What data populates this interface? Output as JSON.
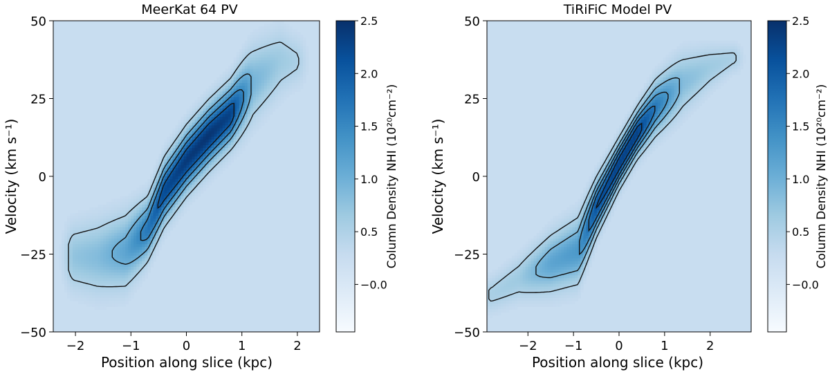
{
  "chart_data": [
    {
      "type": "heatmap",
      "title": "MeerKat 64 PV",
      "xlabel": "Position along slice (kpc)",
      "ylabel": "Velocity (km s⁻¹)",
      "xlim": [
        -2.4,
        2.4
      ],
      "ylim": [
        -50,
        50
      ],
      "xticks": [
        -2,
        -1,
        0,
        1,
        2
      ],
      "xtick_labels": [
        "−2",
        "−1",
        "0",
        "1",
        "2"
      ],
      "yticks": [
        -50,
        -25,
        0,
        25,
        50
      ],
      "ytick_labels": [
        "−50",
        "−25",
        "0",
        "25",
        "50"
      ],
      "colorbar": {
        "label": "Column Density NHI (10²⁰cm⁻²)",
        "range": [
          -0.45,
          2.5
        ],
        "ticks": [
          -0.0,
          0.5,
          1.0,
          1.5,
          2.0,
          2.5
        ],
        "tick_labels": [
          "−0.0",
          "0.5",
          "1.0",
          "1.5",
          "2.0",
          "2.5"
        ],
        "colormap": "Blues"
      },
      "background_value": 0.25,
      "contour_levels": [
        0.5,
        1.0,
        1.5,
        2.0
      ],
      "ridge": {
        "x": [
          -2.0,
          -1.6,
          -1.1,
          -0.7,
          -0.4,
          0.0,
          0.4,
          0.8,
          1.2,
          1.7,
          1.95
        ],
        "y": [
          -26,
          -26,
          -24,
          -17,
          -5,
          5,
          13,
          20,
          30,
          37,
          37
        ]
      },
      "profile": {
        "width": [
          9,
          10,
          10,
          8,
          8,
          8,
          8,
          8,
          10,
          9,
          7
        ],
        "peak": [
          0.75,
          0.85,
          1.15,
          1.7,
          2.2,
          2.4,
          2.45,
          2.3,
          0.95,
          0.65,
          0.55
        ]
      }
    },
    {
      "type": "heatmap",
      "title": "TiRiFiC Model PV",
      "xlabel": "Position along slice (kpc)",
      "ylabel": "Velocity (km s⁻¹)",
      "xlim": [
        -2.9,
        2.9
      ],
      "ylim": [
        -50,
        50
      ],
      "xticks": [
        -2,
        -1,
        0,
        1,
        2
      ],
      "xtick_labels": [
        "−2",
        "−1",
        "0",
        "1",
        "2"
      ],
      "yticks": [
        -50,
        -25,
        0,
        25,
        50
      ],
      "ytick_labels": [
        "−50",
        "−25",
        "0",
        "25",
        "50"
      ],
      "colorbar": {
        "label": "Column Density NHI (10²⁰cm⁻²)",
        "range": [
          -0.45,
          2.5
        ],
        "ticks": [
          -0.0,
          0.5,
          1.0,
          1.5,
          2.0,
          2.5
        ],
        "tick_labels": [
          "−0.0",
          "0.5",
          "1.0",
          "1.5",
          "2.0",
          "2.5"
        ],
        "colormap": "Blues"
      },
      "background_value": 0.25,
      "contour_levels": [
        0.5,
        0.9,
        1.3,
        1.7,
        2.1
      ],
      "ridge": {
        "x": [
          -2.8,
          -2.2,
          -1.5,
          -0.9,
          -0.5,
          0.0,
          0.4,
          0.8,
          1.4,
          2.0,
          2.5
        ],
        "y": [
          -38,
          -33,
          -28,
          -24,
          -10,
          4,
          14,
          22,
          30,
          35,
          38
        ]
      },
      "profile": {
        "width": [
          5,
          6,
          8,
          9,
          7,
          6,
          6,
          7,
          8,
          6,
          4
        ],
        "peak": [
          0.55,
          0.65,
          1.15,
          1.3,
          2.1,
          2.3,
          2.3,
          1.7,
          0.85,
          0.65,
          0.55
        ]
      }
    }
  ]
}
